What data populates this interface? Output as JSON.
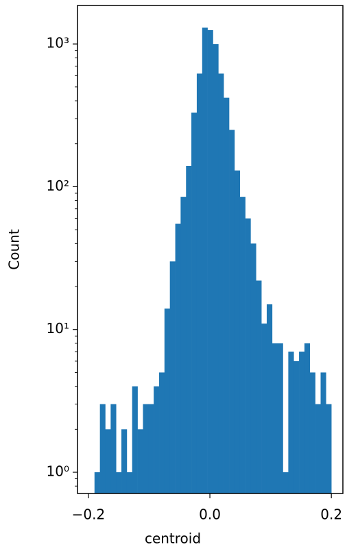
{
  "chart_data": {
    "type": "histogram",
    "xlabel": "centroid",
    "ylabel": "Count",
    "color": "#1f77b4",
    "log_y": true,
    "bins": [
      -0.19,
      -0.1811,
      -0.1723,
      -0.1634,
      -0.1545,
      -0.1457,
      -0.1368,
      -0.128,
      -0.1191,
      -0.1102,
      -0.1014,
      -0.0925,
      -0.0836,
      -0.0748,
      -0.0659,
      -0.057,
      -0.0482,
      -0.0393,
      -0.0305,
      -0.0216,
      -0.0127,
      -0.0039,
      0.005,
      0.0139,
      0.0227,
      0.0316,
      0.0405,
      0.0493,
      0.0582,
      0.067,
      0.0759,
      0.0848,
      0.0936,
      0.1025,
      0.1114,
      0.1202,
      0.1291,
      0.138,
      0.1468,
      0.1557,
      0.1645,
      0.1734,
      0.1823,
      0.1911,
      0.2
    ],
    "values": [
      1,
      3,
      2,
      3,
      1,
      2,
      1,
      4,
      2,
      3,
      3,
      4,
      5,
      14,
      30,
      55,
      85,
      140,
      330,
      620,
      1300,
      1250,
      1000,
      620,
      420,
      250,
      130,
      85,
      60,
      40,
      22,
      11,
      15,
      8,
      8,
      1,
      7,
      6,
      7,
      8,
      5,
      3,
      5,
      3
    ],
    "xlim": [
      -0.218,
      0.219
    ],
    "xticks": [
      {
        "value": -0.2,
        "label": "−0.2"
      },
      {
        "value": 0.0,
        "label": "0.0"
      },
      {
        "value": 0.2,
        "label": "0.2"
      }
    ],
    "ylim": [
      0.71,
      1860
    ],
    "yticks": [
      {
        "value": 1,
        "label": "10⁰"
      },
      {
        "value": 10,
        "label": "10¹"
      },
      {
        "value": 100,
        "label": "10²"
      },
      {
        "value": 1000,
        "label": "10³"
      }
    ],
    "yminorticks": [
      0.8,
      0.9,
      2,
      3,
      4,
      5,
      6,
      7,
      8,
      9,
      20,
      30,
      40,
      50,
      60,
      70,
      80,
      90,
      200,
      300,
      400,
      500,
      600,
      700,
      800,
      900
    ]
  }
}
